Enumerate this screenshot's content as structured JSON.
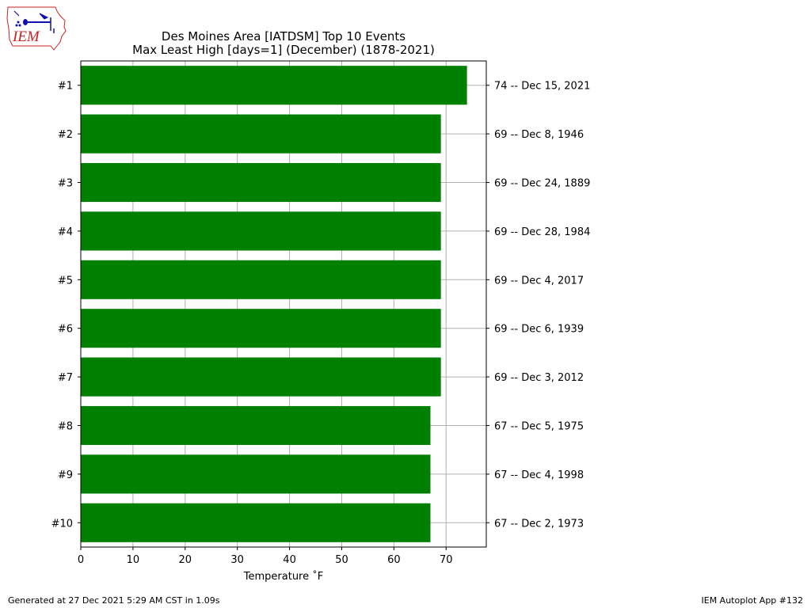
{
  "logo": {
    "text": "IEM",
    "colors": {
      "outline": "#cc2222",
      "symbols": "#1010b0"
    }
  },
  "chart_title": {
    "line1": "Des Moines Area [IATDSM] Top 10 Events",
    "line2": "Max Least High [days=1] (December) (1878-2021)"
  },
  "chart_data": {
    "type": "bar",
    "orientation": "horizontal",
    "title": "Des Moines Area [IATDSM] Top 10 Events\nMax Least High [days=1] (December) (1878-2021)",
    "xlabel": "Temperature ˚F",
    "ylabel": "",
    "xlim": [
      0,
      77.7
    ],
    "xticks": [
      0,
      10,
      20,
      30,
      40,
      50,
      60,
      70
    ],
    "grid": true,
    "bar_color": "#008000",
    "categories": [
      "#1",
      "#2",
      "#3",
      "#4",
      "#5",
      "#6",
      "#7",
      "#8",
      "#9",
      "#10"
    ],
    "values": [
      74,
      69,
      69,
      69,
      69,
      69,
      69,
      67,
      67,
      67
    ],
    "right_labels": [
      "74 -- Dec 15, 2021",
      "69 -- Dec 8, 1946",
      "69 -- Dec 24, 1889",
      "69 -- Dec 28, 1984",
      "69 -- Dec 4, 2017",
      "69 -- Dec 6, 1939",
      "69 -- Dec 3, 2012",
      "67 -- Dec 5, 1975",
      "67 -- Dec 4, 1998",
      "67 -- Dec 2, 1973"
    ]
  },
  "footer": {
    "left": "Generated at 27 Dec 2021 5:29 AM CST in 1.09s",
    "right": "IEM Autoplot App #132"
  }
}
